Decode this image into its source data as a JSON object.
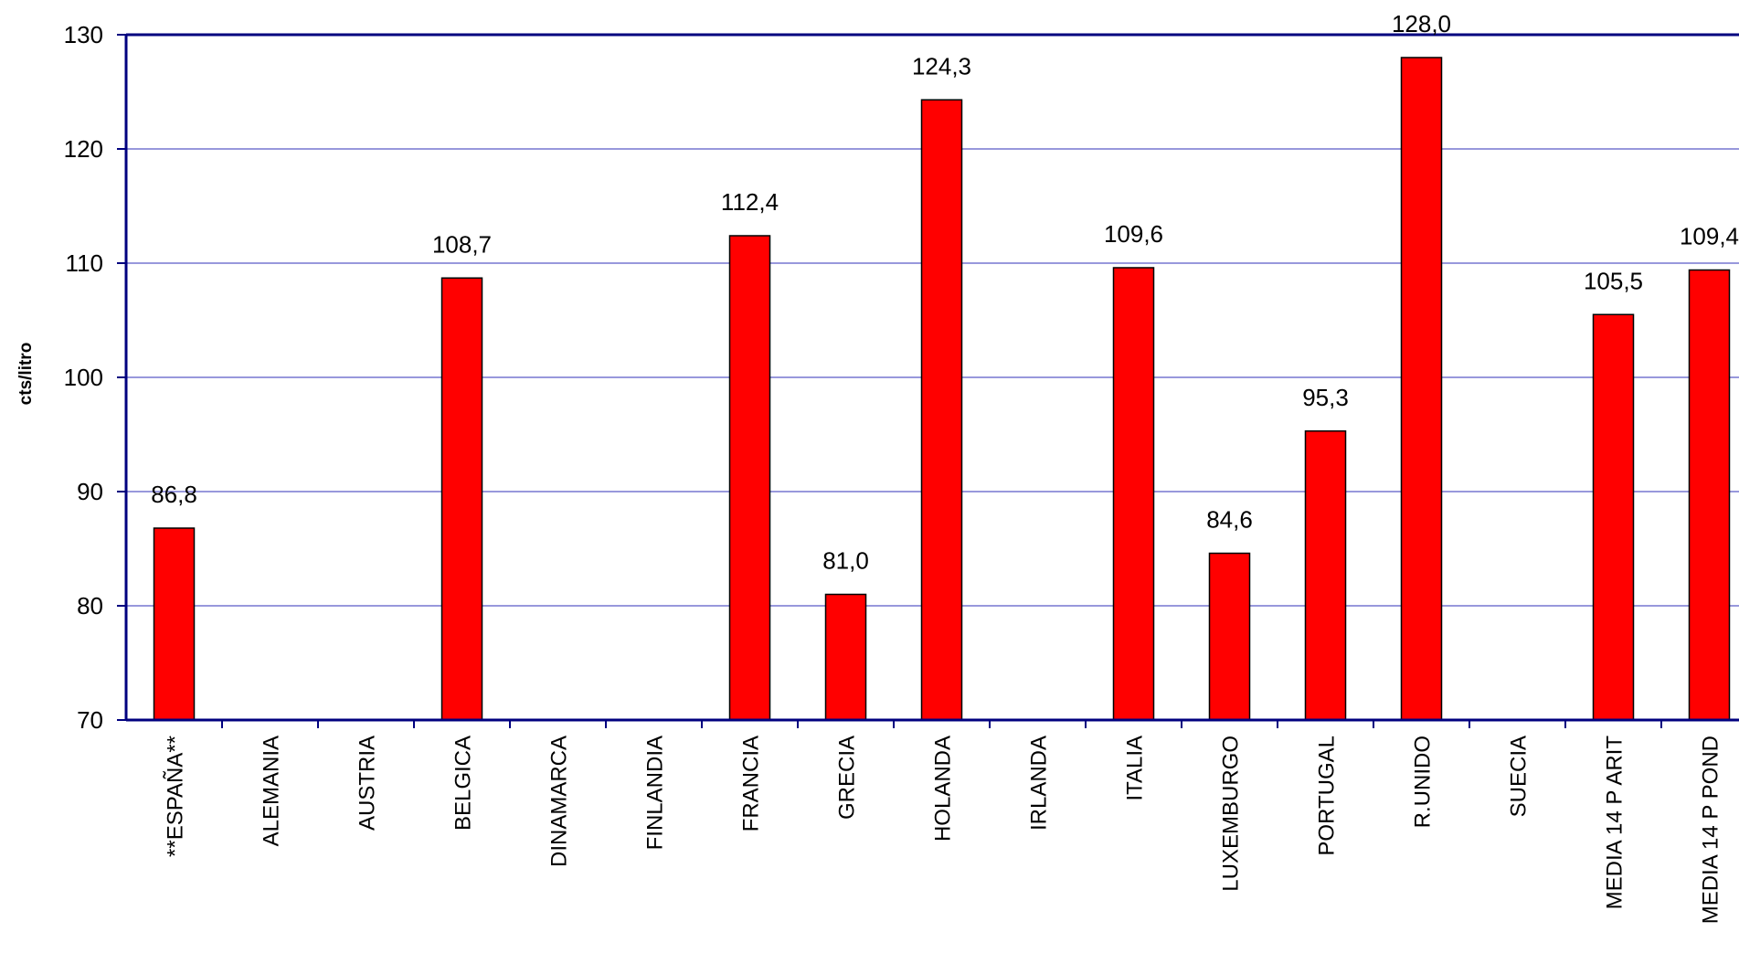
{
  "chart_data": {
    "type": "bar",
    "ylabel": "cts/litro",
    "ylim": [
      70,
      130
    ],
    "yticks": [
      70,
      80,
      90,
      100,
      110,
      120,
      130
    ],
    "ytick_labels": [
      "70",
      "80",
      "90",
      "100",
      "110",
      "120",
      "130"
    ],
    "grid": true,
    "categories": [
      "**ESPAÑA**",
      "ALEMANIA",
      "AUSTRIA",
      "BELGICA",
      "DINAMARCA",
      "FINLANDIA",
      "FRANCIA",
      "GRECIA",
      "HOLANDA",
      "IRLANDA",
      "ITALIA",
      "LUXEMBURGO",
      "PORTUGAL",
      "R.UNIDO",
      "SUECIA",
      "MEDIA 14 P ARIT",
      "MEDIA 14 P POND"
    ],
    "values": [
      86.8,
      null,
      null,
      108.7,
      null,
      null,
      112.4,
      81.0,
      124.3,
      null,
      109.6,
      84.6,
      95.3,
      128.0,
      null,
      105.5,
      109.4
    ],
    "value_labels": [
      "86,8",
      "",
      "",
      "108,7",
      "",
      "",
      "112,4",
      "81,0",
      "124,3",
      "",
      "109,6",
      "84,6",
      "95,3",
      "128,0",
      "",
      "105,5",
      "109,4"
    ],
    "colors": {
      "bar": "#ff0000",
      "bar_stroke": "#000000",
      "axis": "#00007f",
      "grid": "#5b5bc8"
    }
  }
}
